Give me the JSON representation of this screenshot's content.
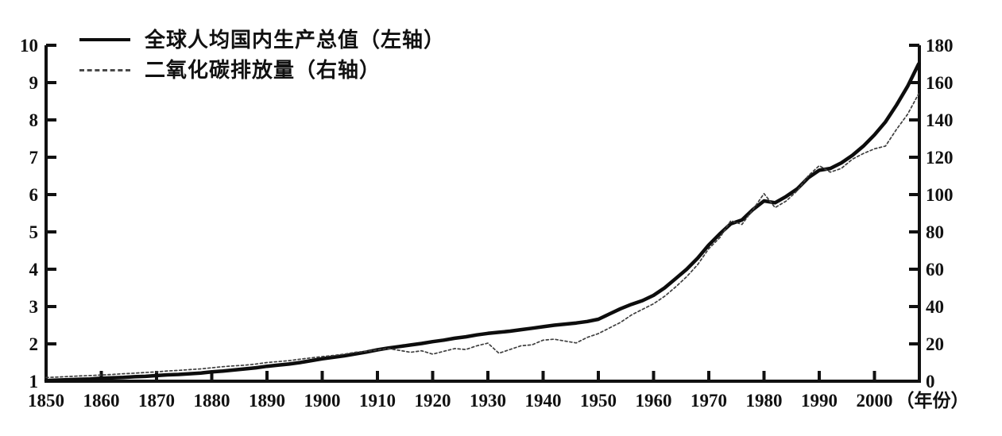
{
  "colors": {
    "background": "#ffffff",
    "axis": "#111111",
    "text": "#111111",
    "gdp_line": "#0d0d0d",
    "co2_line": "#3f3f3f"
  },
  "chart_data": {
    "type": "line",
    "title": "",
    "grid": false,
    "legend_position": "top-left",
    "x_axis": {
      "unit_label": "（年份）",
      "ticks": [
        1850,
        1860,
        1870,
        1880,
        1890,
        1900,
        1910,
        1920,
        1930,
        1940,
        1950,
        1960,
        1970,
        1980,
        1990,
        2000
      ],
      "range": [
        1850,
        2008
      ]
    },
    "y_left": {
      "ticks": [
        1,
        2,
        3,
        4,
        5,
        6,
        7,
        8,
        9,
        10
      ],
      "range": [
        1,
        10
      ]
    },
    "y_right": {
      "ticks": [
        0,
        20,
        40,
        60,
        80,
        100,
        120,
        140,
        160,
        180
      ],
      "range": [
        0,
        180
      ]
    },
    "x": [
      1850,
      1852,
      1854,
      1856,
      1858,
      1860,
      1862,
      1864,
      1866,
      1868,
      1870,
      1872,
      1874,
      1876,
      1878,
      1880,
      1882,
      1884,
      1886,
      1888,
      1890,
      1892,
      1894,
      1896,
      1898,
      1900,
      1902,
      1904,
      1906,
      1908,
      1910,
      1912,
      1914,
      1916,
      1918,
      1920,
      1922,
      1924,
      1926,
      1928,
      1930,
      1932,
      1934,
      1936,
      1938,
      1940,
      1942,
      1944,
      1946,
      1948,
      1950,
      1952,
      1954,
      1956,
      1958,
      1960,
      1962,
      1964,
      1966,
      1968,
      1970,
      1972,
      1974,
      1976,
      1978,
      1980,
      1982,
      1984,
      1986,
      1988,
      1990,
      1992,
      1994,
      1996,
      1998,
      2000,
      2002,
      2004,
      2006,
      2008
    ],
    "series": [
      {
        "name": "全球人均国内生产总值（左轴）",
        "axis": "left",
        "line_style": "solid",
        "color": "#0d0d0d",
        "values": [
          1.02,
          1.03,
          1.04,
          1.05,
          1.06,
          1.08,
          1.09,
          1.1,
          1.12,
          1.13,
          1.15,
          1.17,
          1.18,
          1.2,
          1.22,
          1.25,
          1.27,
          1.3,
          1.33,
          1.36,
          1.4,
          1.43,
          1.46,
          1.5,
          1.55,
          1.6,
          1.64,
          1.68,
          1.73,
          1.78,
          1.84,
          1.89,
          1.93,
          1.97,
          2.01,
          2.06,
          2.1,
          2.15,
          2.19,
          2.24,
          2.28,
          2.31,
          2.34,
          2.38,
          2.42,
          2.46,
          2.5,
          2.53,
          2.56,
          2.6,
          2.66,
          2.8,
          2.94,
          3.06,
          3.16,
          3.3,
          3.5,
          3.75,
          4.0,
          4.3,
          4.65,
          4.95,
          5.22,
          5.32,
          5.6,
          5.83,
          5.78,
          5.95,
          6.15,
          6.45,
          6.65,
          6.7,
          6.85,
          7.05,
          7.3,
          7.6,
          7.95,
          8.4,
          8.9,
          9.5
        ]
      },
      {
        "name": "二氧化碳排放量（右轴）",
        "axis": "right",
        "line_style": "dotted",
        "color": "#3f3f3f",
        "values": [
          2,
          2.2,
          2.5,
          2.8,
          3,
          3.3,
          3.6,
          4,
          4.3,
          4.7,
          5,
          5.5,
          5.8,
          6.2,
          6.6,
          7.2,
          7.8,
          8.2,
          8.6,
          9.2,
          10,
          10.5,
          11,
          11.8,
          12.5,
          13.2,
          13.8,
          14.5,
          15.5,
          16,
          16.8,
          17.5,
          16.5,
          15.5,
          16.3,
          14.5,
          16,
          17.5,
          17,
          19,
          20.4,
          15,
          17,
          19,
          19.5,
          22,
          22.5,
          21.5,
          20.5,
          23.5,
          25.5,
          28.5,
          31.5,
          35.5,
          38.5,
          41.5,
          45.5,
          50.5,
          56,
          62.5,
          71,
          77,
          86,
          84,
          92,
          100.5,
          93,
          96.5,
          102,
          110,
          115.5,
          112,
          114,
          119,
          122,
          124.5,
          126,
          135,
          143,
          154
        ]
      }
    ]
  }
}
